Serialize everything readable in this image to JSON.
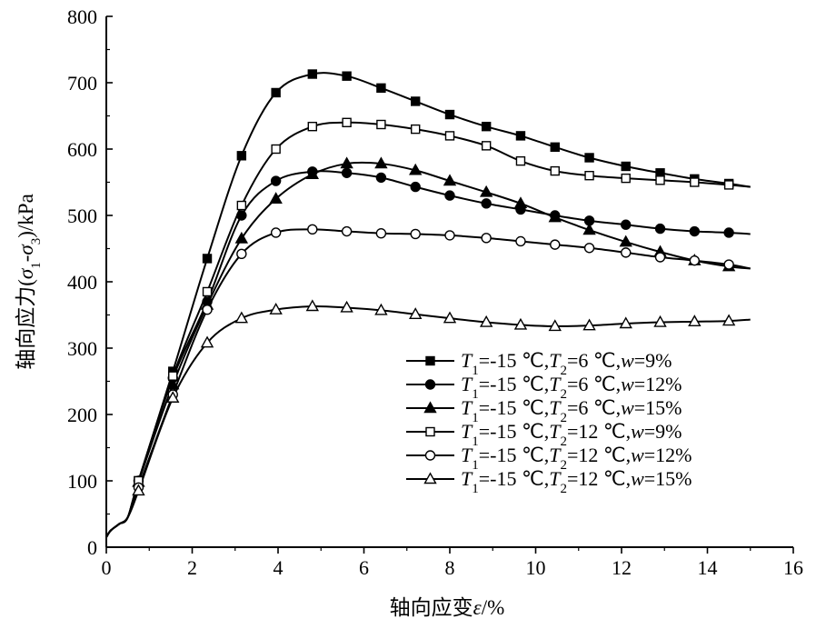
{
  "chart_data": {
    "type": "line",
    "title": "",
    "xlabel": "轴向应变ε/%",
    "ylabel": "轴向应力(σ1-σ3)/kPa",
    "xlim": [
      0,
      16
    ],
    "ylim": [
      0,
      800
    ],
    "x_ticks": [
      0,
      2,
      4,
      6,
      8,
      10,
      12,
      14,
      16
    ],
    "y_ticks": [
      0,
      100,
      200,
      300,
      400,
      500,
      600,
      700,
      800
    ],
    "grid": false,
    "legend_position": "bottom-right",
    "series": [
      {
        "name": "T1=-15 ℃,T2=6 ℃,w=9%",
        "marker": "square-filled",
        "x": [
          0,
          0.1,
          0.3,
          0.5,
          0.75,
          1.55,
          2.35,
          3.15,
          3.95,
          4.8,
          5.6,
          6.4,
          7.2,
          8.0,
          8.85,
          9.65,
          10.45,
          11.25,
          12.1,
          12.9,
          13.7,
          14.5,
          15.0
        ],
        "y": [
          15,
          25,
          35,
          45,
          100,
          265,
          435,
          590,
          685,
          713,
          710,
          692,
          672,
          652,
          634,
          620,
          603,
          587,
          574,
          564,
          555,
          548,
          543
        ]
      },
      {
        "name": "T1=-15 ℃,T2=6 ℃,w=12%",
        "marker": "circle-filled",
        "x": [
          0,
          0.1,
          0.3,
          0.5,
          0.75,
          1.55,
          2.35,
          3.15,
          3.95,
          4.8,
          5.6,
          6.4,
          7.2,
          8.0,
          8.85,
          9.65,
          10.45,
          11.25,
          12.1,
          12.9,
          13.7,
          14.5,
          15.0
        ],
        "y": [
          15,
          25,
          35,
          45,
          100,
          255,
          370,
          500,
          552,
          566,
          564,
          557,
          543,
          530,
          518,
          509,
          500,
          492,
          486,
          480,
          476,
          474,
          472
        ]
      },
      {
        "name": "T1=-15 ℃,T2=6 ℃,w=15%",
        "marker": "triangle-filled",
        "x": [
          0,
          0.1,
          0.3,
          0.5,
          0.75,
          1.55,
          2.35,
          3.15,
          3.95,
          4.8,
          5.6,
          6.4,
          7.2,
          8.0,
          8.85,
          9.65,
          10.45,
          11.25,
          12.1,
          12.9,
          13.7,
          14.5,
          15.0
        ],
        "y": [
          15,
          25,
          35,
          45,
          98,
          245,
          365,
          465,
          525,
          562,
          578,
          578,
          568,
          552,
          535,
          518,
          497,
          478,
          460,
          445,
          432,
          423,
          420
        ]
      },
      {
        "name": "T1=-15 ℃,T2=12 ℃,w=9%",
        "marker": "square-open",
        "x": [
          0,
          0.1,
          0.3,
          0.5,
          0.75,
          1.55,
          2.35,
          3.15,
          3.95,
          4.8,
          5.6,
          6.4,
          7.2,
          8.0,
          8.85,
          9.65,
          10.45,
          11.25,
          12.1,
          12.9,
          13.7,
          14.5,
          15.0
        ],
        "y": [
          15,
          25,
          35,
          45,
          100,
          258,
          385,
          515,
          600,
          634,
          640,
          637,
          630,
          620,
          605,
          582,
          567,
          560,
          556,
          553,
          550,
          546,
          543
        ]
      },
      {
        "name": "T1=-15 ℃,T2=12 ℃,w=12%",
        "marker": "circle-open",
        "x": [
          0,
          0.1,
          0.3,
          0.5,
          0.75,
          1.55,
          2.35,
          3.15,
          3.95,
          4.8,
          5.6,
          6.4,
          7.2,
          8.0,
          8.85,
          9.65,
          10.45,
          11.25,
          12.1,
          12.9,
          13.7,
          14.5,
          15.0
        ],
        "y": [
          15,
          25,
          35,
          45,
          90,
          230,
          358,
          442,
          474,
          479,
          476,
          473,
          472,
          470,
          466,
          461,
          456,
          451,
          444,
          437,
          432,
          426,
          420
        ]
      },
      {
        "name": "T1=-15 ℃,T2=12 ℃,w=15%",
        "marker": "triangle-open",
        "x": [
          0,
          0.1,
          0.3,
          0.5,
          0.75,
          1.55,
          2.35,
          3.15,
          3.95,
          4.8,
          5.6,
          6.4,
          7.2,
          8.0,
          8.85,
          9.65,
          10.45,
          11.25,
          12.1,
          12.9,
          13.7,
          14.5,
          15.0
        ],
        "y": [
          15,
          25,
          35,
          45,
          85,
          225,
          308,
          345,
          358,
          363,
          361,
          357,
          351,
          345,
          339,
          335,
          333,
          334,
          337,
          339,
          340,
          341,
          343
        ]
      }
    ]
  },
  "legend": {
    "items": [
      {
        "t": "T",
        "s1": "1",
        "a": "=-15 ℃,",
        "t2": "T",
        "s2": "2",
        "b": "=6 ℃,",
        "w": "w",
        "c": "=9%"
      },
      {
        "t": "T",
        "s1": "1",
        "a": "=-15 ℃,",
        "t2": "T",
        "s2": "2",
        "b": "=6 ℃,",
        "w": "w",
        "c": "=12%"
      },
      {
        "t": "T",
        "s1": "1",
        "a": "=-15 ℃,",
        "t2": "T",
        "s2": "2",
        "b": "=6 ℃,",
        "w": "w",
        "c": "=15%"
      },
      {
        "t": "T",
        "s1": "1",
        "a": "=-15 ℃,",
        "t2": "T",
        "s2": "2",
        "b": "=12 ℃,",
        "w": "w",
        "c": "=9%"
      },
      {
        "t": "T",
        "s1": "1",
        "a": "=-15 ℃,",
        "t2": "T",
        "s2": "2",
        "b": "=12 ℃,",
        "w": "w",
        "c": "=12%"
      },
      {
        "t": "T",
        "s1": "1",
        "a": "=-15 ℃,",
        "t2": "T",
        "s2": "2",
        "b": "=12 ℃,",
        "w": "w",
        "c": "=15%"
      }
    ]
  },
  "axis_text": {
    "x_prefix": "轴向应变",
    "x_symbol": "ε",
    "x_suffix": "/%",
    "y_prefix": "轴向应力(",
    "y_sigma1": "σ",
    "y_sub1": "1",
    "y_dash": "-",
    "y_sigma3": "σ",
    "y_sub3": "3",
    "y_suffix": ")/kPa"
  }
}
